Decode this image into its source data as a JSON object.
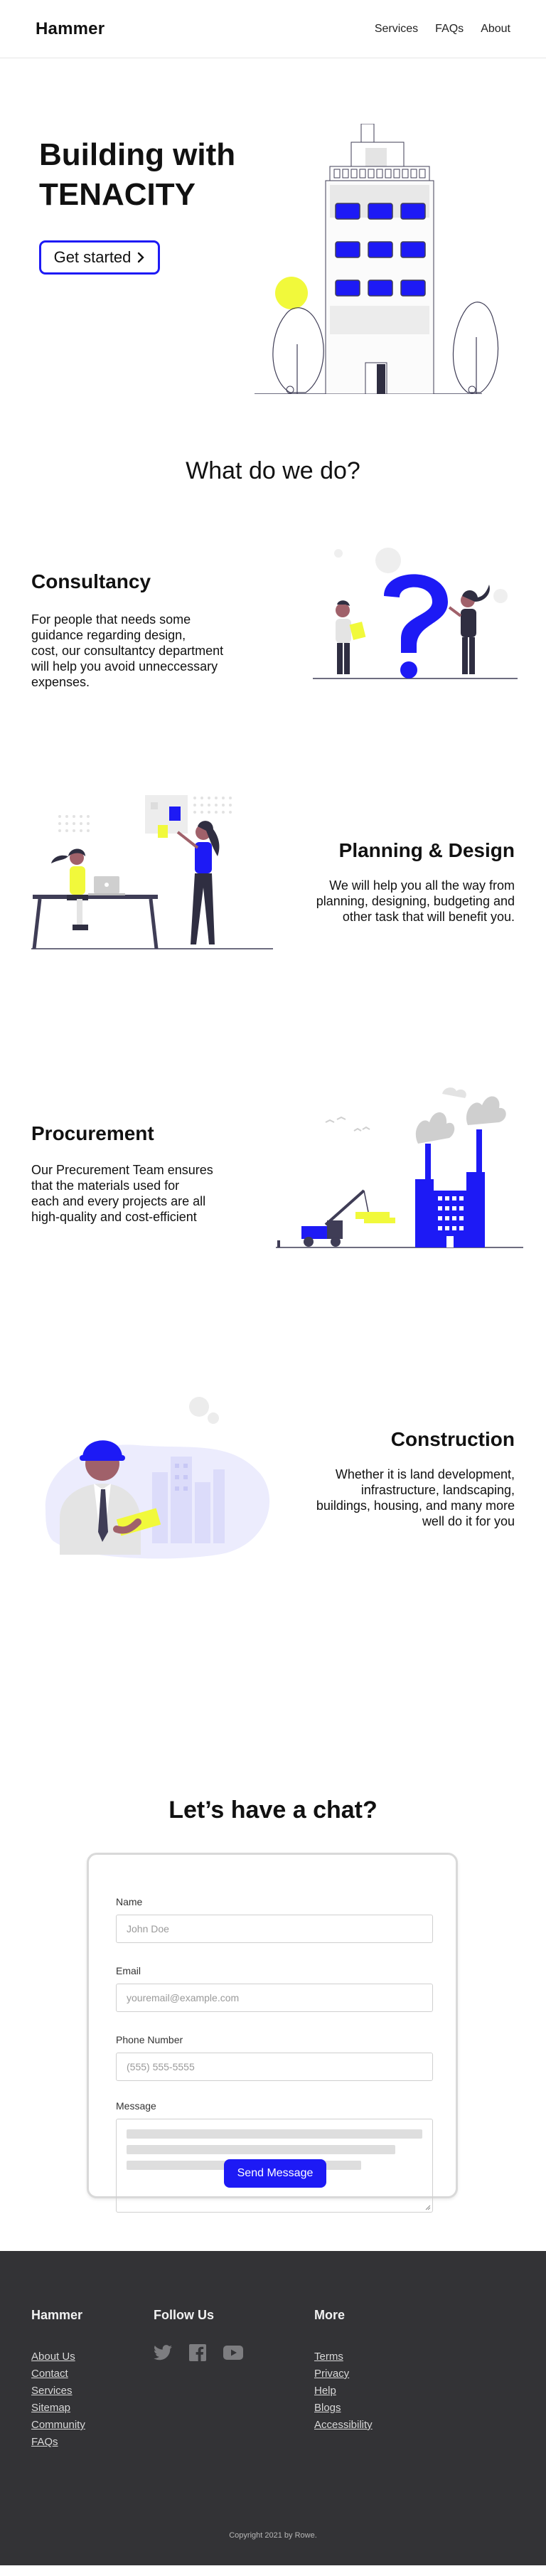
{
  "nav": {
    "brand": "Hammer",
    "links": [
      "Services",
      "FAQs",
      "About"
    ]
  },
  "hero": {
    "title_line1": "Building with",
    "title_line2": "Tenacity",
    "cta_label": "Get started",
    "cta_icon": "chevron-right-icon"
  },
  "services_section": {
    "title": "What do we do?",
    "items": [
      {
        "title": "Consultancy",
        "lines": [
          "For people that needs some",
          "guidance regarding design,",
          "cost, our consultantcy department",
          "will help you avoid unneccessary",
          "expenses."
        ]
      },
      {
        "title": "Planning & Design",
        "lines": [
          "We will help you all the way from",
          "planning, designing, budgeting and",
          "other task that will benefit you."
        ]
      },
      {
        "title": "Procurement",
        "lines": [
          "Our Precurement Team ensures",
          "that the materials used for",
          "each and every projects are all",
          "high-quality and cost-efficient"
        ]
      },
      {
        "title": "Construction",
        "lines": [
          "Whether it is land development,",
          "infrastructure, landscaping,",
          "buildings, housing, and many more",
          "well do it for you"
        ]
      }
    ]
  },
  "contact": {
    "title": "Let’s have a chat?",
    "name_label": "Name",
    "name_placeholder": "John Doe",
    "email_label": "Email",
    "email_placeholder": "youremail@example.com",
    "phone_label": "Phone Number",
    "phone_placeholder": "(555) 555-5555",
    "message_label": "Message",
    "send_label": "Send Message"
  },
  "footer": {
    "brand": "Hammer",
    "links": [
      "About Us",
      "Contact",
      "Services",
      "Sitemap",
      "Community",
      "FAQs"
    ],
    "follow_title": "Follow Us",
    "social_icons": [
      "twitter-icon",
      "facebook-icon",
      "youtube-icon"
    ],
    "more_title": "More",
    "more_links": [
      "Terms",
      "Privacy",
      "Help",
      "Blogs",
      "Accessibility"
    ],
    "copyright": "Copyright 2021 by Rowe."
  },
  "colors": {
    "accent": "#1d1af5",
    "highlight": "#f1f93b",
    "footer_bg": "#333336",
    "ink": "#2f2e41"
  }
}
